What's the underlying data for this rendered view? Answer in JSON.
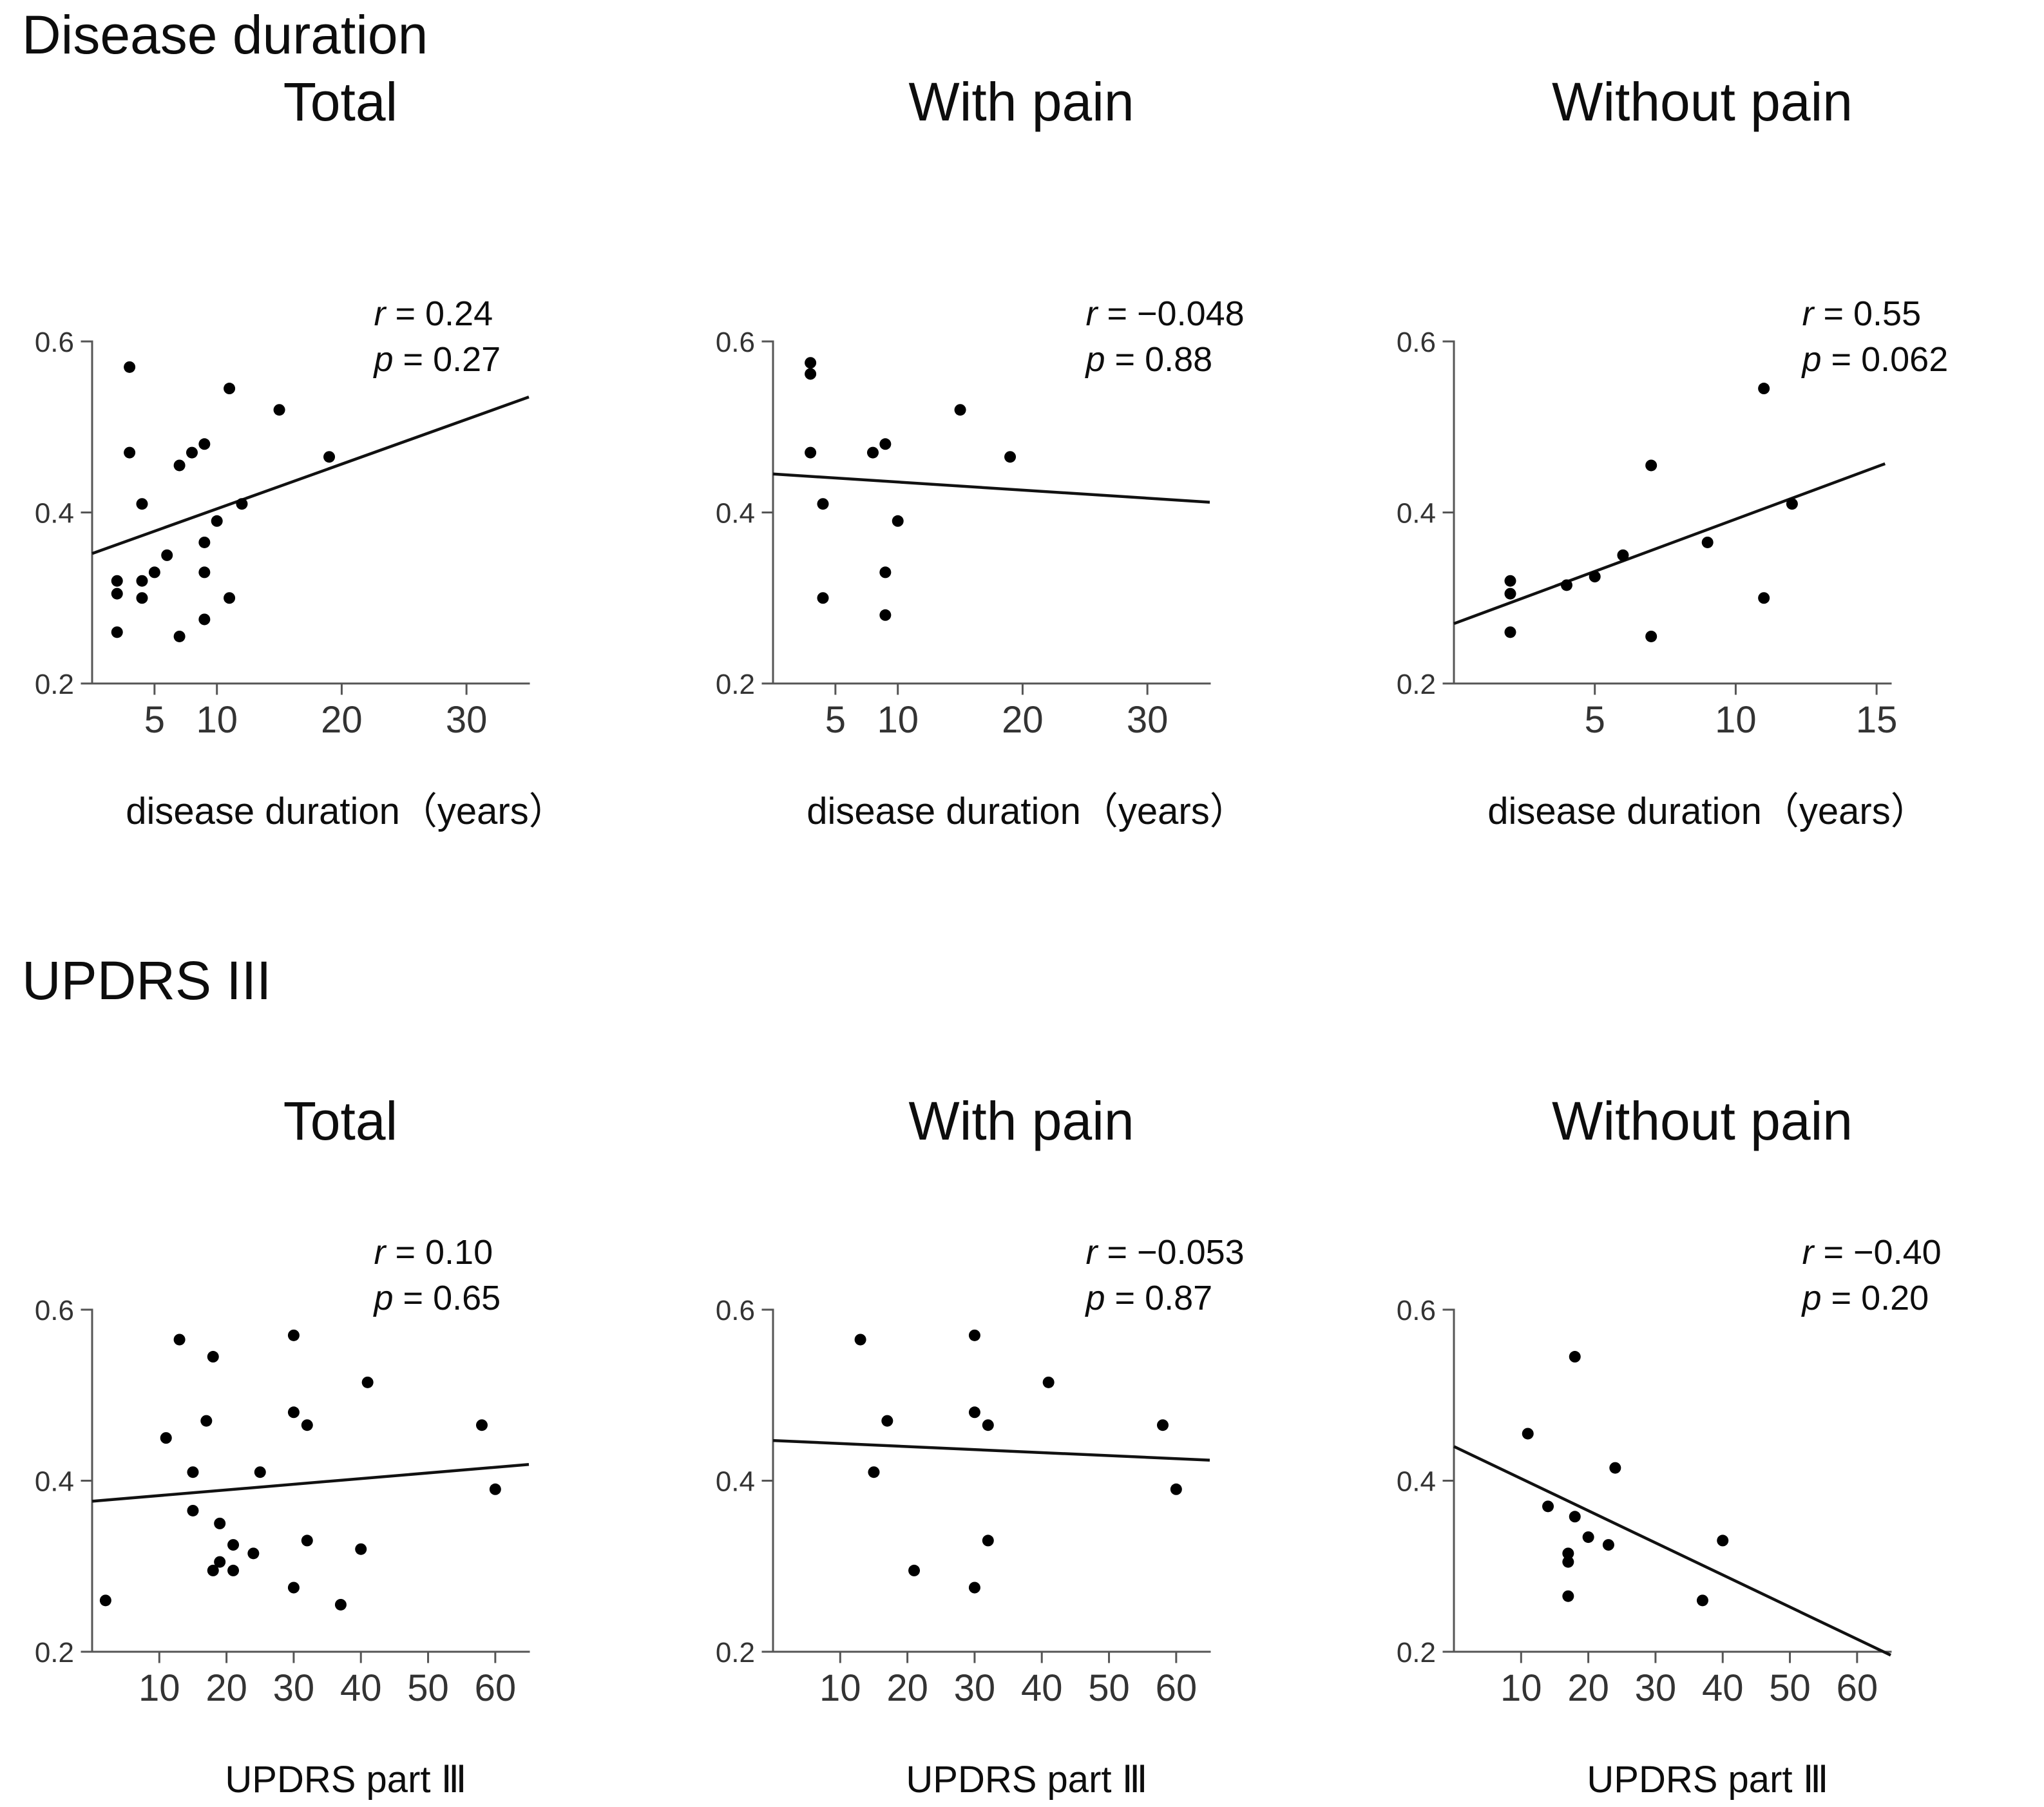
{
  "page": {
    "background": "#ffffff",
    "text_color": "#111111",
    "dot_color": "#000000",
    "axis_color": "#555555"
  },
  "sections": [
    {
      "title": "Disease duration",
      "columns": [
        "Total",
        "With pain",
        "Without pain"
      ]
    },
    {
      "title": "UPDRS III",
      "columns": [
        "Total",
        "With pain",
        "Without pain"
      ]
    }
  ],
  "chart_data": [
    {
      "type": "scatter",
      "section": "Disease duration",
      "column": "Total",
      "xlabel": "disease duration（years）",
      "xlim": [
        0,
        35
      ],
      "ylim": [
        0.2,
        0.6
      ],
      "xticks": [
        5,
        10,
        20,
        30
      ],
      "yticks": [
        0.2,
        0.4,
        0.6
      ],
      "grid": false,
      "legend": "none",
      "stats": {
        "r_symbol": "r",
        "r_text": " = 0.24",
        "p_symbol": "p",
        "p_text": " = 0.27"
      },
      "fit_line": {
        "x1": 0,
        "y1": 0.352,
        "x2": 35,
        "y2": 0.535
      },
      "points": [
        [
          3,
          0.57
        ],
        [
          11,
          0.545
        ],
        [
          15,
          0.52
        ],
        [
          9,
          0.48
        ],
        [
          3,
          0.47
        ],
        [
          8,
          0.47
        ],
        [
          19,
          0.465
        ],
        [
          7,
          0.455
        ],
        [
          4,
          0.41
        ],
        [
          12,
          0.41
        ],
        [
          10,
          0.39
        ],
        [
          9,
          0.365
        ],
        [
          6,
          0.35
        ],
        [
          5,
          0.33
        ],
        [
          9,
          0.33
        ],
        [
          2,
          0.32
        ],
        [
          4,
          0.32
        ],
        [
          2,
          0.305
        ],
        [
          4,
          0.3
        ],
        [
          11,
          0.3
        ],
        [
          9,
          0.275
        ],
        [
          2,
          0.26
        ],
        [
          7,
          0.255
        ]
      ]
    },
    {
      "type": "scatter",
      "section": "Disease duration",
      "column": "With pain",
      "xlabel": "disease duration（years）",
      "xlim": [
        0,
        35
      ],
      "ylim": [
        0.2,
        0.6
      ],
      "xticks": [
        5,
        10,
        20,
        30
      ],
      "yticks": [
        0.2,
        0.4,
        0.6
      ],
      "grid": false,
      "legend": "none",
      "stats": {
        "r_symbol": "r",
        "r_text": " = −0.048",
        "p_symbol": "p",
        "p_text": " = 0.88"
      },
      "fit_line": {
        "x1": 0,
        "y1": 0.445,
        "x2": 35,
        "y2": 0.412
      },
      "points": [
        [
          3,
          0.575
        ],
        [
          3,
          0.562
        ],
        [
          15,
          0.52
        ],
        [
          9,
          0.48
        ],
        [
          3,
          0.47
        ],
        [
          8,
          0.47
        ],
        [
          19,
          0.465
        ],
        [
          4,
          0.41
        ],
        [
          10,
          0.39
        ],
        [
          9,
          0.33
        ],
        [
          4,
          0.3
        ],
        [
          9,
          0.28
        ]
      ]
    },
    {
      "type": "scatter",
      "section": "Disease duration",
      "column": "Without pain",
      "xlabel": "disease duration（years）",
      "xlim": [
        0,
        15.5
      ],
      "ylim": [
        0.2,
        0.6
      ],
      "xticks": [
        5,
        10,
        15
      ],
      "yticks": [
        0.2,
        0.4,
        0.6
      ],
      "grid": false,
      "legend": "none",
      "stats": {
        "r_symbol": "r",
        "r_text": " = 0.55",
        "p_symbol": "p",
        "p_text": " = 0.062"
      },
      "fit_line": {
        "x1": 0,
        "y1": 0.27,
        "x2": 15.3,
        "y2": 0.457
      },
      "points": [
        [
          2,
          0.32
        ],
        [
          2,
          0.305
        ],
        [
          2,
          0.26
        ],
        [
          4,
          0.315
        ],
        [
          5,
          0.325
        ],
        [
          6,
          0.35
        ],
        [
          7,
          0.455
        ],
        [
          7,
          0.255
        ],
        [
          9,
          0.365
        ],
        [
          11,
          0.545
        ],
        [
          11,
          0.3
        ],
        [
          12,
          0.41
        ]
      ]
    },
    {
      "type": "scatter",
      "section": "UPDRS III",
      "column": "Total",
      "xlabel": "UPDRS part Ⅲ",
      "xlim": [
        0,
        65
      ],
      "ylim": [
        0.2,
        0.6
      ],
      "xticks": [
        10,
        20,
        30,
        40,
        50,
        60
      ],
      "yticks": [
        0.2,
        0.4,
        0.6
      ],
      "grid": false,
      "legend": "none",
      "stats": {
        "r_symbol": "r",
        "r_text": " = 0.10",
        "p_symbol": "p",
        "p_text": " = 0.65"
      },
      "fit_line": {
        "x1": 0,
        "y1": 0.376,
        "x2": 65,
        "y2": 0.419
      },
      "points": [
        [
          13,
          0.565
        ],
        [
          30,
          0.57
        ],
        [
          18,
          0.545
        ],
        [
          41,
          0.515
        ],
        [
          30,
          0.48
        ],
        [
          17,
          0.47
        ],
        [
          32,
          0.465
        ],
        [
          58,
          0.465
        ],
        [
          11,
          0.45
        ],
        [
          15,
          0.41
        ],
        [
          25,
          0.41
        ],
        [
          60,
          0.39
        ],
        [
          15,
          0.365
        ],
        [
          19,
          0.35
        ],
        [
          21,
          0.325
        ],
        [
          32,
          0.33
        ],
        [
          24,
          0.315
        ],
        [
          40,
          0.32
        ],
        [
          19,
          0.305
        ],
        [
          18,
          0.295
        ],
        [
          21,
          0.295
        ],
        [
          30,
          0.275
        ],
        [
          2,
          0.26
        ],
        [
          37,
          0.255
        ]
      ]
    },
    {
      "type": "scatter",
      "section": "UPDRS III",
      "column": "With pain",
      "xlabel": "UPDRS part Ⅲ",
      "xlim": [
        0,
        65
      ],
      "ylim": [
        0.2,
        0.6
      ],
      "xticks": [
        10,
        20,
        30,
        40,
        50,
        60
      ],
      "yticks": [
        0.2,
        0.4,
        0.6
      ],
      "grid": false,
      "legend": "none",
      "stats": {
        "r_symbol": "r",
        "r_text": " = −0.053",
        "p_symbol": "p",
        "p_text": " = 0.87"
      },
      "fit_line": {
        "x1": 0,
        "y1": 0.447,
        "x2": 65,
        "y2": 0.424
      },
      "points": [
        [
          13,
          0.565
        ],
        [
          30,
          0.57
        ],
        [
          41,
          0.515
        ],
        [
          30,
          0.48
        ],
        [
          17,
          0.47
        ],
        [
          32,
          0.465
        ],
        [
          58,
          0.465
        ],
        [
          15,
          0.41
        ],
        [
          60,
          0.39
        ],
        [
          32,
          0.33
        ],
        [
          21,
          0.295
        ],
        [
          30,
          0.275
        ]
      ]
    },
    {
      "type": "scatter",
      "section": "UPDRS III",
      "column": "Without pain",
      "xlabel": "UPDRS part Ⅲ",
      "xlim": [
        0,
        65
      ],
      "ylim": [
        0.2,
        0.6
      ],
      "xticks": [
        10,
        20,
        30,
        40,
        50,
        60
      ],
      "yticks": [
        0.2,
        0.4,
        0.6
      ],
      "grid": false,
      "legend": "none",
      "stats": {
        "r_symbol": "r",
        "r_text": " = −0.40",
        "p_symbol": "p",
        "p_text": " = 0.20"
      },
      "fit_line": {
        "x1": 0,
        "y1": 0.44,
        "x2": 65,
        "y2": 0.196
      },
      "points": [
        [
          18,
          0.545
        ],
        [
          11,
          0.455
        ],
        [
          24,
          0.415
        ],
        [
          14,
          0.37
        ],
        [
          18,
          0.358
        ],
        [
          20,
          0.334
        ],
        [
          23,
          0.325
        ],
        [
          40,
          0.33
        ],
        [
          17,
          0.315
        ],
        [
          17,
          0.305
        ],
        [
          17,
          0.265
        ],
        [
          37,
          0.26
        ]
      ]
    }
  ]
}
